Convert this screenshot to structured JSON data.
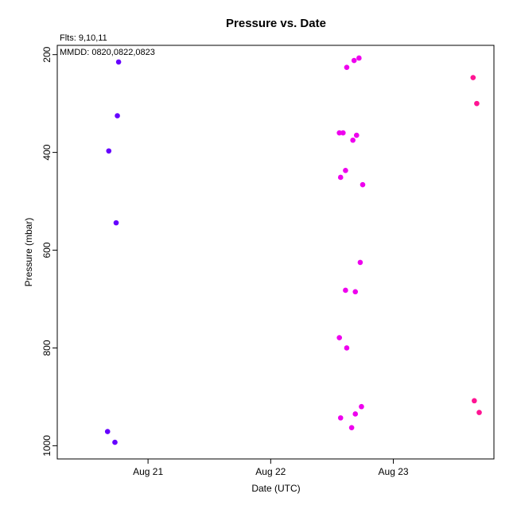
{
  "chart_data": {
    "type": "scatter",
    "title": "Pressure  vs. Date",
    "xlabel": "Date (UTC)",
    "ylabel": "Pressure (mbar)",
    "annotations": [
      "Flts: 9,10,11",
      "MMDD: 0820,0822,0823"
    ],
    "x_axis": {
      "unit": "days since 2008-08-21 00:00 UTC",
      "range": [
        -0.74,
        2.82
      ],
      "ticks": [
        {
          "value": 0,
          "label": "Aug 21"
        },
        {
          "value": 1,
          "label": "Aug 22"
        },
        {
          "value": 2,
          "label": "Aug 23"
        }
      ]
    },
    "y_axis": {
      "range": [
        181,
        1027
      ],
      "inverted": true,
      "ticks": [
        {
          "value": 200,
          "label": "200"
        },
        {
          "value": 400,
          "label": "400"
        },
        {
          "value": 600,
          "label": "600"
        },
        {
          "value": 800,
          "label": "800"
        },
        {
          "value": 1000,
          "label": "1000"
        }
      ]
    },
    "grid": false,
    "legend": "none",
    "series": [
      {
        "color": "#6600FF",
        "points": [
          {
            "x": -0.24,
            "y": 215
          },
          {
            "x": -0.25,
            "y": 325
          },
          {
            "x": -0.32,
            "y": 397
          },
          {
            "x": -0.26,
            "y": 544
          },
          {
            "x": -0.33,
            "y": 971
          },
          {
            "x": -0.27,
            "y": 993
          }
        ]
      },
      {
        "color": "#EE00EE",
        "points": [
          {
            "x": 1.72,
            "y": 207
          },
          {
            "x": 1.68,
            "y": 212
          },
          {
            "x": 1.62,
            "y": 226
          },
          {
            "x": 1.56,
            "y": 360
          },
          {
            "x": 1.59,
            "y": 360
          },
          {
            "x": 1.7,
            "y": 365
          },
          {
            "x": 1.67,
            "y": 375
          },
          {
            "x": 1.61,
            "y": 437
          },
          {
            "x": 1.57,
            "y": 451
          },
          {
            "x": 1.75,
            "y": 466
          },
          {
            "x": 1.73,
            "y": 625
          },
          {
            "x": 1.61,
            "y": 682
          },
          {
            "x": 1.69,
            "y": 685
          },
          {
            "x": 1.56,
            "y": 779
          },
          {
            "x": 1.62,
            "y": 800
          },
          {
            "x": 1.74,
            "y": 920
          },
          {
            "x": 1.69,
            "y": 935
          },
          {
            "x": 1.57,
            "y": 943
          },
          {
            "x": 1.66,
            "y": 963
          }
        ]
      },
      {
        "color": "#FF1493",
        "points": [
          {
            "x": 2.65,
            "y": 247
          },
          {
            "x": 2.68,
            "y": 300
          },
          {
            "x": 2.66,
            "y": 908
          },
          {
            "x": 2.7,
            "y": 932
          }
        ]
      }
    ]
  }
}
